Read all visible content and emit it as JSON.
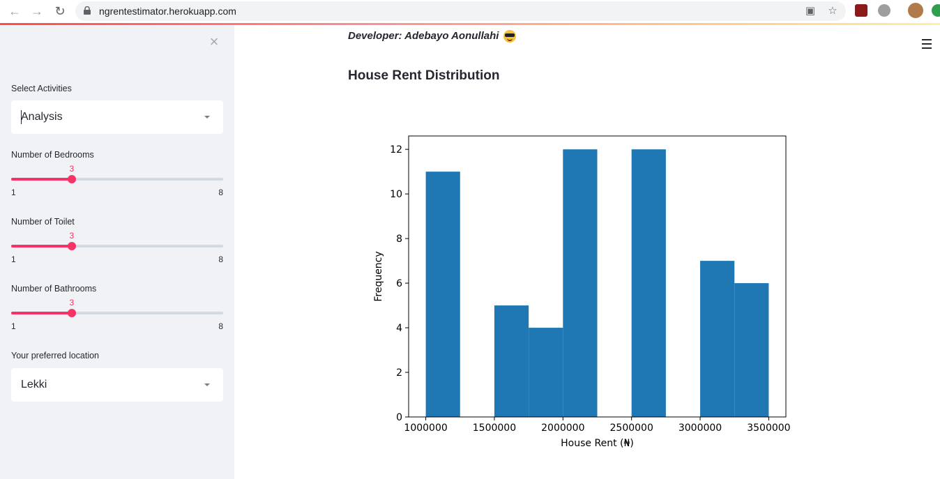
{
  "browser": {
    "url": "ngrentestimator.herokuapp.com",
    "icons": [
      "back-arrow-icon",
      "forward-arrow-icon",
      "reload-icon",
      "lock-icon",
      "cast-icon",
      "star-icon"
    ]
  },
  "sidebar": {
    "activities_label": "Select Activities",
    "activities_value": "Analysis",
    "bedrooms": {
      "label": "Number of Bedrooms",
      "value": "3",
      "min": "1",
      "max": "8",
      "fraction": 0.2857
    },
    "toilet": {
      "label": "Number of Toilet",
      "value": "3",
      "min": "1",
      "max": "8",
      "fraction": 0.2857
    },
    "bathrooms": {
      "label": "Number of Bathrooms",
      "value": "3",
      "min": "1",
      "max": "8",
      "fraction": 0.2857
    },
    "location_label": "Your preferred location",
    "location_value": "Lekki",
    "accent": "#f63366"
  },
  "main": {
    "developer": "Developer: Adebayo Aonullahi",
    "heading": "House Rent Distribution"
  },
  "chart_data": {
    "type": "bar",
    "title": "",
    "xlabel": "House Rent (₦)",
    "ylabel": "Frequency",
    "bin_edges": [
      1000000,
      1250000,
      1500000,
      1750000,
      2000000,
      2250000,
      2500000,
      2750000,
      3000000,
      3250000,
      3500000
    ],
    "values": [
      11,
      0,
      5,
      4,
      12,
      0,
      12,
      0,
      7,
      6
    ],
    "xlim": [
      875000,
      3625000
    ],
    "ylim": [
      0,
      12.6
    ],
    "xticks": [
      1000000,
      1500000,
      2000000,
      2500000,
      3000000,
      3500000
    ],
    "xtick_labels": [
      "1000000",
      "1500000",
      "2000000",
      "2500000",
      "3000000",
      "3500000"
    ],
    "yticks": [
      0,
      2,
      4,
      6,
      8,
      10,
      12
    ],
    "ytick_labels": [
      "0",
      "2",
      "4",
      "6",
      "8",
      "10",
      "12"
    ],
    "bar_color": "#1f77b4",
    "grid": false
  }
}
